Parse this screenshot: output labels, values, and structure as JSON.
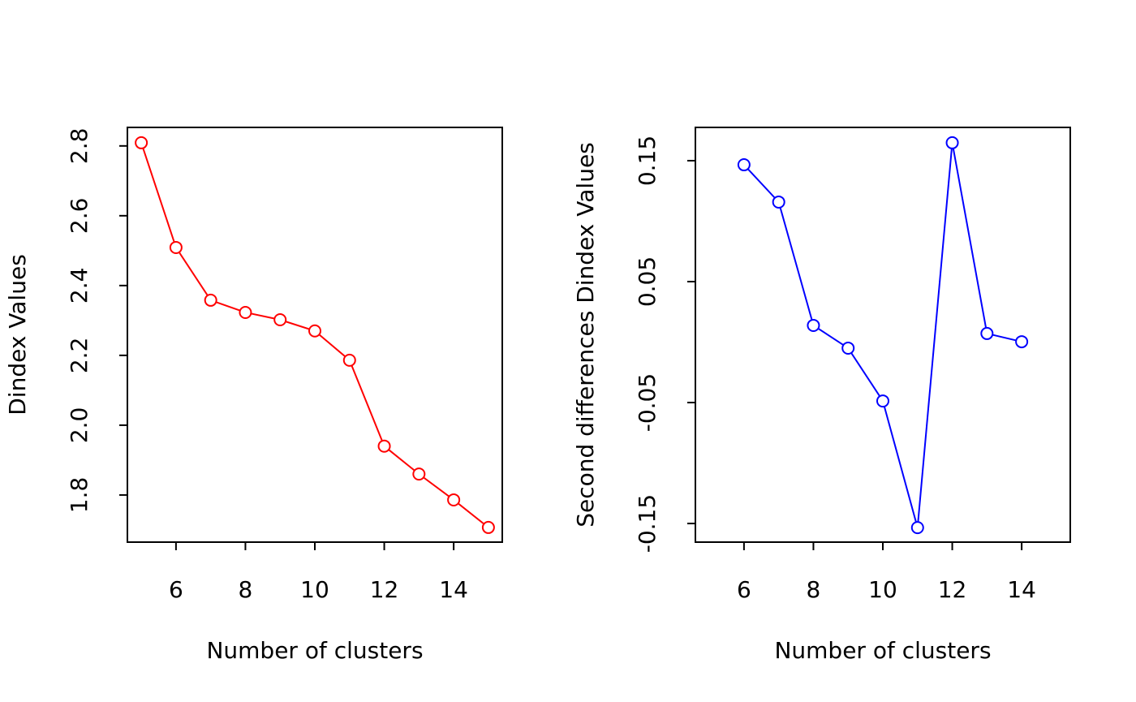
{
  "chart_data": [
    {
      "type": "line",
      "xlabel": "Number of clusters",
      "ylabel": "Dindex Values",
      "x": [
        5,
        6,
        7,
        8,
        9,
        10,
        11,
        12,
        13,
        14,
        15
      ],
      "series": [
        {
          "color": "#ff0000",
          "values": [
            2.809,
            2.509,
            2.358,
            2.323,
            2.302,
            2.27,
            2.186,
            1.94,
            1.86,
            1.786,
            1.707
          ]
        }
      ],
      "xlim": [
        4.6,
        15.4
      ],
      "xticks": [
        6,
        8,
        10,
        12,
        14
      ],
      "ylim": [
        1.665,
        2.853
      ],
      "yticks": [
        1.8,
        {
          "value": 2,
          "label": "2.0"
        },
        2.2,
        2.4,
        2.6,
        2.8
      ]
    },
    {
      "type": "line",
      "xlabel": "Number of clusters",
      "ylabel": "Second differences Dindex Values",
      "x": [
        6,
        7,
        8,
        9,
        10,
        11,
        12,
        13,
        14
      ],
      "series": [
        {
          "color": "#0000ff",
          "values": [
            0.1466,
            0.1158,
            0.0138,
            -0.005,
            -0.0487,
            -0.1534,
            0.1648,
            0.0071,
            0.0003
          ]
        }
      ],
      "xlim": [
        4.6,
        15.4
      ],
      "xticks": [
        6,
        8,
        10,
        12,
        14
      ],
      "ylim": [
        -0.1654,
        0.1775
      ],
      "yticks": [
        -0.15,
        -0.05,
        0.05,
        0.15
      ]
    }
  ]
}
